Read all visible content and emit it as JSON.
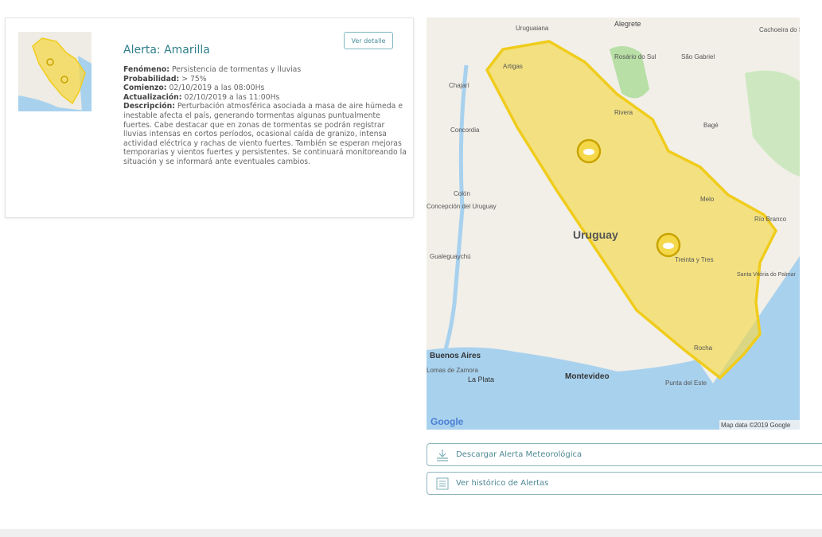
{
  "alert": {
    "title": "Alerta: Amarilla",
    "detail_button": "Ver detalle",
    "fields": [
      {
        "label": "Fenómeno:",
        "value": "Persistencia de tormentas y lluvias"
      },
      {
        "label": "Probabilidad:",
        "value": "> 75%"
      },
      {
        "label": "Comienzo:",
        "value": "02/10/2019 a las 08:00Hs"
      },
      {
        "label": "Actualización:",
        "value": "02/10/2019 a las 11:00Hs"
      },
      {
        "label": "Descripción:",
        "value": "Perturbación atmosférica asociada a masa de aire húmeda e inestable afecta el país, generando tormentas algunas puntualmente fuertes. Cabe destacar que en zonas de tormentas se podrán registrar lluvias intensas en cortos períodos, ocasional caída de granizo, intensa actividad eléctrica y rachas de viento fuertes. También se esperan mejoras temporarias y vientos fuertes y persistentes. Se continuará monitoreando la situación y se informará ante eventuales cambios."
      }
    ],
    "level_color": "#f5d84a"
  },
  "map": {
    "country_label": "Uruguay",
    "places": [
      "Uruguaiana",
      "Alegrete",
      "Cachoeira do Sul",
      "Rosário do Sul",
      "São Gabriel",
      "Artigas",
      "Rivera",
      "Bagé",
      "Chajarí",
      "Concordia",
      "Colón",
      "Concepción del Uruguay",
      "Gualeguaychú",
      "Melo",
      "Treinta y Tres",
      "Río Branco",
      "Santa Vitória do Palmar",
      "Rocha",
      "Punta del Este",
      "Montevideo",
      "La Plata",
      "Buenos Aires",
      "Lomas de Zamora"
    ],
    "logo": "Google",
    "attribution": "Map data ©2019 Google",
    "alert_icon": "storm-cloud-icon"
  },
  "actions": {
    "download": "Descargar Alerta Meteorológica",
    "history": "Ver histórico de Alertas"
  }
}
